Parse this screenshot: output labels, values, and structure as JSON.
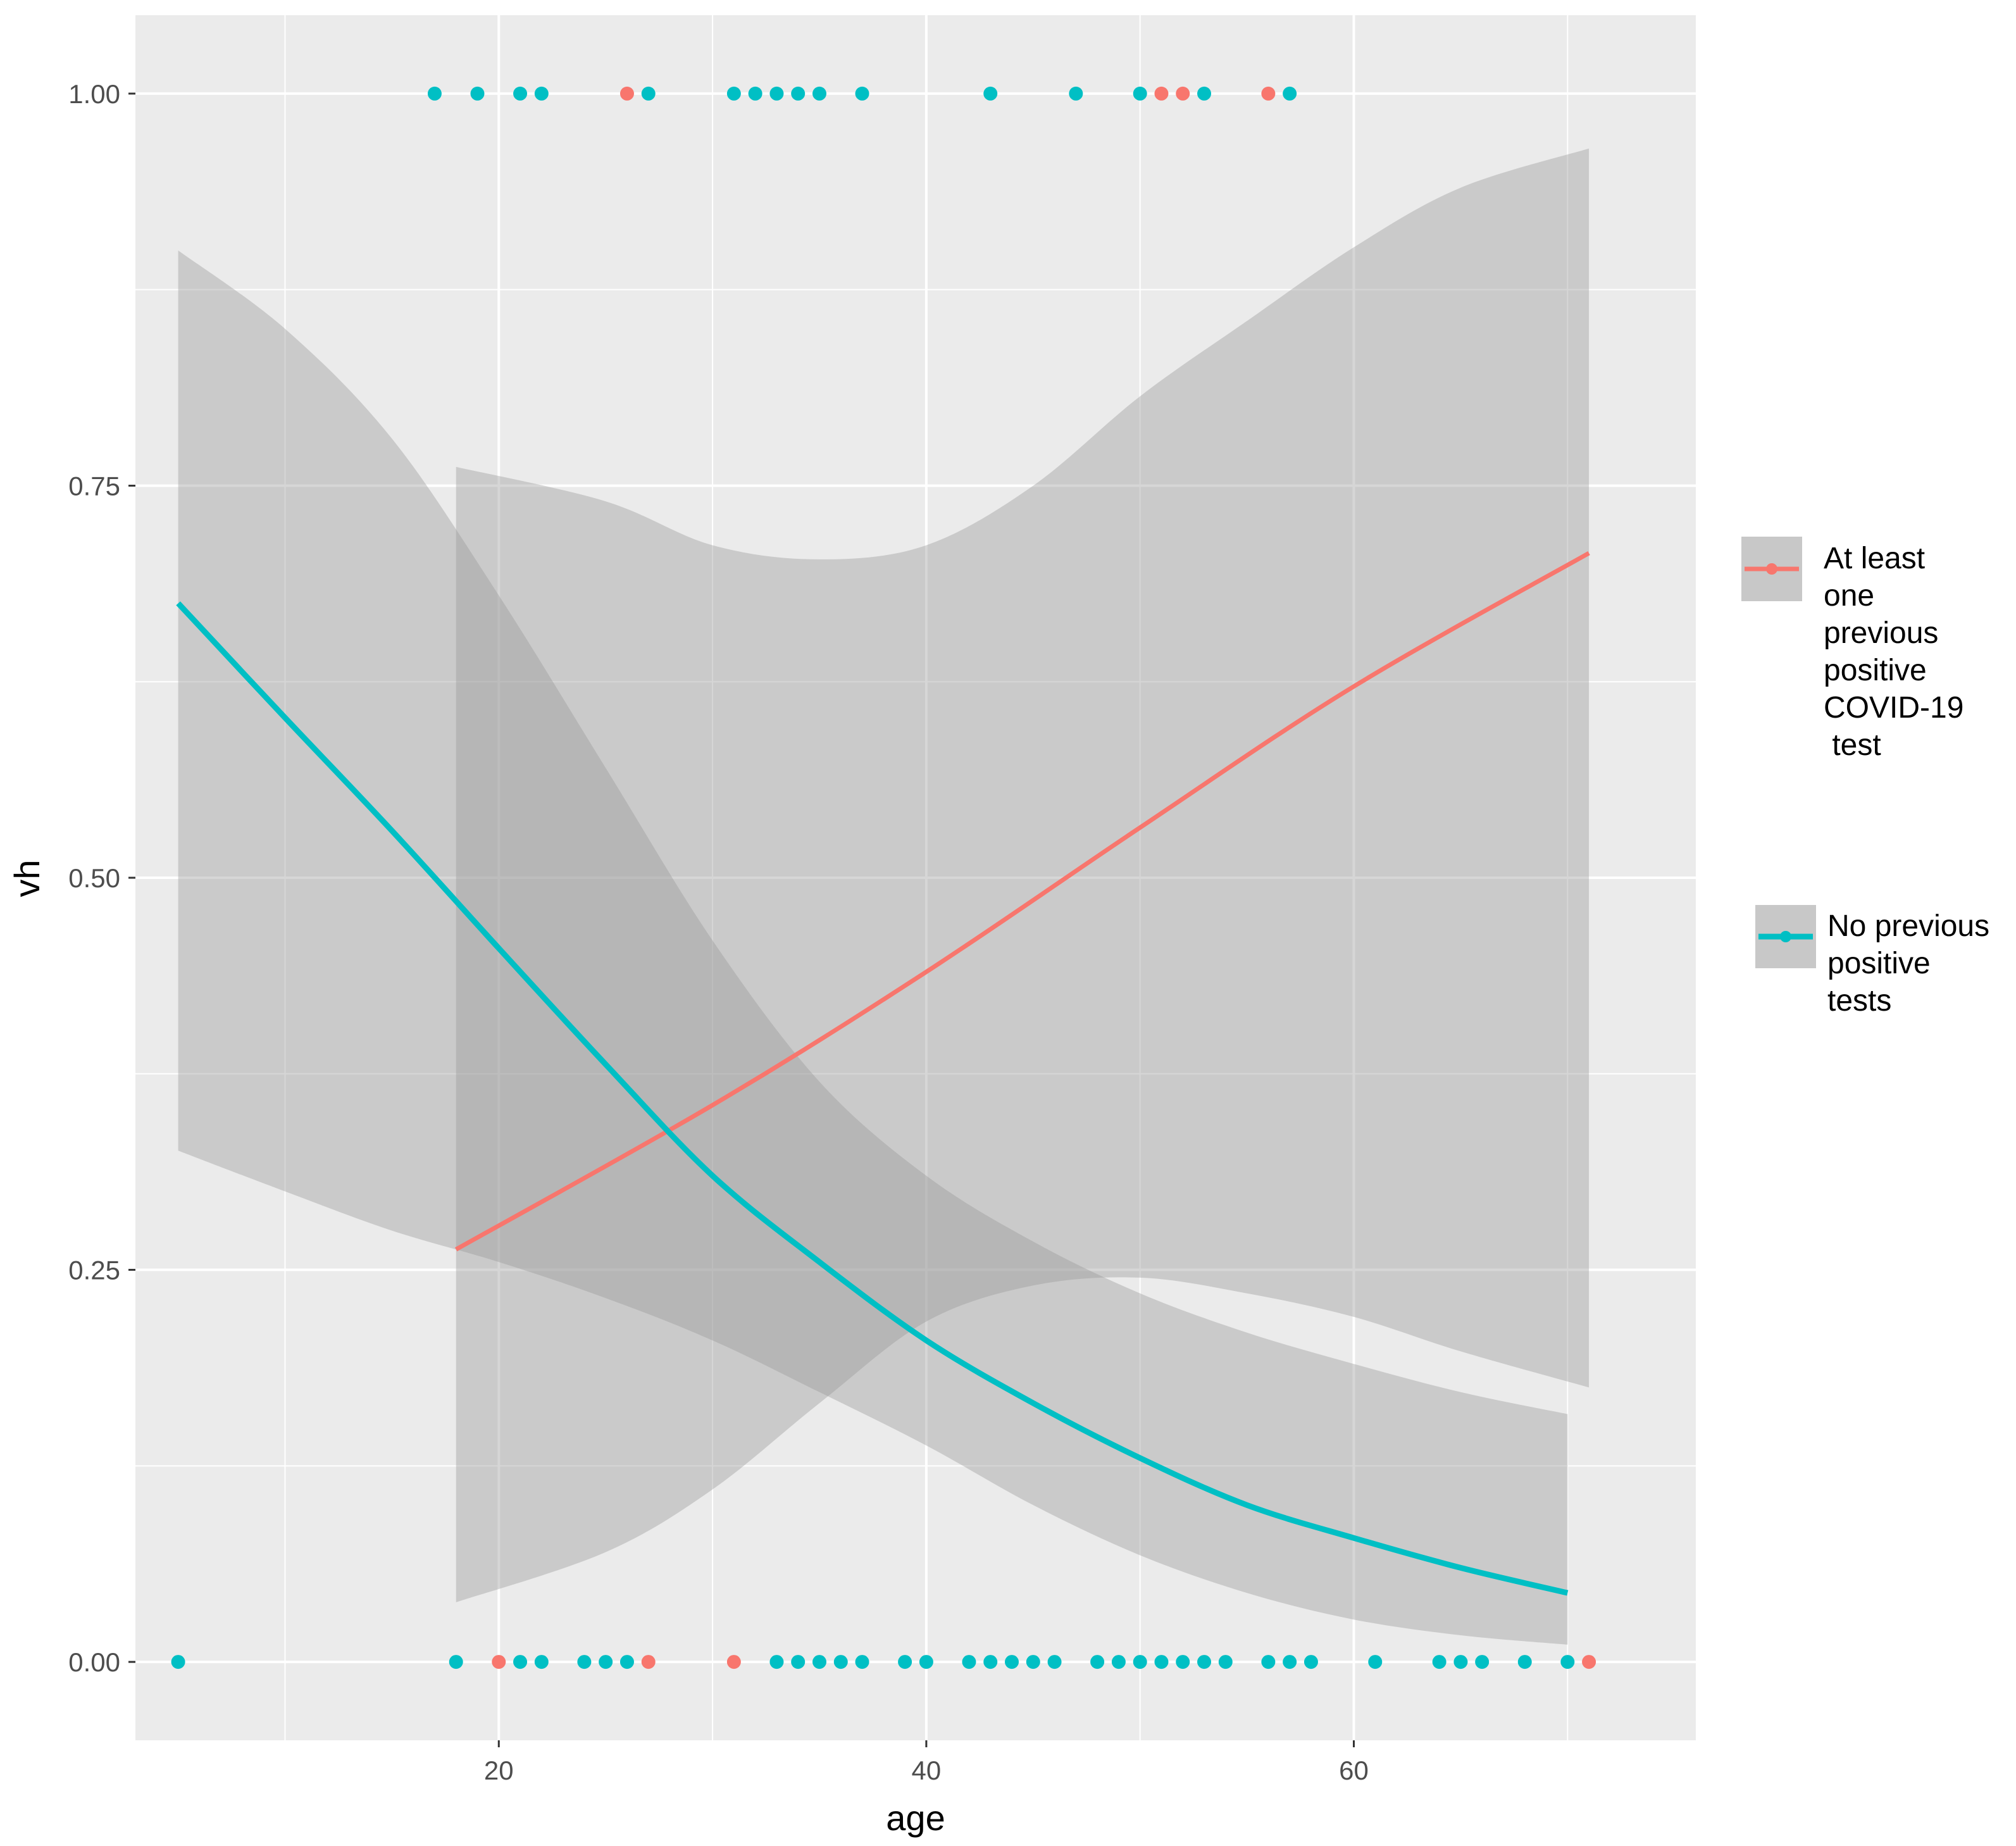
{
  "chart_data": {
    "type": "scatter",
    "xlabel": "age",
    "ylabel": "vh",
    "xlim": [
      3,
      76
    ],
    "ylim": [
      -0.05,
      1.05
    ],
    "x_ticks": [
      20,
      40,
      60
    ],
    "y_ticks": [
      0.0,
      0.25,
      0.5,
      0.75,
      1.0
    ],
    "y_tick_labels": [
      "0.00",
      "0.25",
      "0.50",
      "0.75",
      "1.00"
    ],
    "grid": true,
    "legend_position": "right",
    "colors": {
      "panel": "#EBEBEB",
      "grid": "#FFFFFF",
      "ribbon": "#999999",
      "positive": "#F8766D",
      "none": "#00BFC4"
    },
    "series": [
      {
        "name": "At least one previous positive COVID-19 test",
        "legend_lines": [
          "At least",
          "one",
          "previous",
          "positive",
          "COVID-19",
          " test"
        ],
        "color": "#F8766D",
        "points": [
          [
            26,
            1
          ],
          [
            51,
            1
          ],
          [
            52,
            1
          ],
          [
            56,
            1
          ],
          [
            20,
            0
          ],
          [
            27,
            0
          ],
          [
            31,
            0
          ],
          [
            71,
            0
          ]
        ],
        "fit": [
          [
            18,
            0.263
          ],
          [
            30,
            0.355
          ],
          [
            40,
            0.44
          ],
          [
            50,
            0.532
          ],
          [
            60,
            0.622
          ],
          [
            71,
            0.707
          ]
        ],
        "ci_upper": [
          [
            18,
            0.762
          ],
          [
            25,
            0.74
          ],
          [
            30,
            0.712
          ],
          [
            35,
            0.703
          ],
          [
            40,
            0.712
          ],
          [
            45,
            0.75
          ],
          [
            50,
            0.807
          ],
          [
            55,
            0.855
          ],
          [
            60,
            0.902
          ],
          [
            65,
            0.94
          ],
          [
            71,
            0.965
          ]
        ],
        "ci_lower": [
          [
            18,
            0.038
          ],
          [
            25,
            0.07
          ],
          [
            30,
            0.11
          ],
          [
            35,
            0.165
          ],
          [
            40,
            0.217
          ],
          [
            45,
            0.24
          ],
          [
            50,
            0.245
          ],
          [
            55,
            0.235
          ],
          [
            60,
            0.22
          ],
          [
            65,
            0.198
          ],
          [
            71,
            0.175
          ]
        ]
      },
      {
        "name": "No previous positive tests",
        "legend_lines": [
          "No previous",
          "positive",
          "tests"
        ],
        "color": "#00BFC4",
        "points": [
          [
            17,
            1
          ],
          [
            19,
            1
          ],
          [
            21,
            1
          ],
          [
            22,
            1
          ],
          [
            27,
            1
          ],
          [
            31,
            1
          ],
          [
            32,
            1
          ],
          [
            33,
            1
          ],
          [
            34,
            1
          ],
          [
            35,
            1
          ],
          [
            37,
            1
          ],
          [
            43,
            1
          ],
          [
            47,
            1
          ],
          [
            50,
            1
          ],
          [
            53,
            1
          ],
          [
            57,
            1
          ],
          [
            5,
            0
          ],
          [
            18,
            0
          ],
          [
            21,
            0
          ],
          [
            22,
            0
          ],
          [
            24,
            0
          ],
          [
            25,
            0
          ],
          [
            26,
            0
          ],
          [
            33,
            0
          ],
          [
            34,
            0
          ],
          [
            35,
            0
          ],
          [
            36,
            0
          ],
          [
            37,
            0
          ],
          [
            39,
            0
          ],
          [
            40,
            0
          ],
          [
            42,
            0
          ],
          [
            43,
            0
          ],
          [
            44,
            0
          ],
          [
            45,
            0
          ],
          [
            46,
            0
          ],
          [
            48,
            0
          ],
          [
            49,
            0
          ],
          [
            50,
            0
          ],
          [
            51,
            0
          ],
          [
            52,
            0
          ],
          [
            53,
            0
          ],
          [
            54,
            0
          ],
          [
            56,
            0
          ],
          [
            57,
            0
          ],
          [
            58,
            0
          ],
          [
            61,
            0
          ],
          [
            64,
            0
          ],
          [
            65,
            0
          ],
          [
            66,
            0
          ],
          [
            68,
            0
          ],
          [
            70,
            0
          ]
        ],
        "fit": [
          [
            5,
            0.675
          ],
          [
            10,
            0.602
          ],
          [
            15,
            0.53
          ],
          [
            20,
            0.455
          ],
          [
            25,
            0.381
          ],
          [
            30,
            0.31
          ],
          [
            35,
            0.255
          ],
          [
            40,
            0.205
          ],
          [
            45,
            0.165
          ],
          [
            50,
            0.13
          ],
          [
            55,
            0.1
          ],
          [
            60,
            0.079
          ],
          [
            65,
            0.06
          ],
          [
            70,
            0.044
          ]
        ],
        "ci_upper": [
          [
            5,
            0.9
          ],
          [
            10,
            0.85
          ],
          [
            15,
            0.78
          ],
          [
            20,
            0.68
          ],
          [
            25,
            0.57
          ],
          [
            30,
            0.46
          ],
          [
            35,
            0.37
          ],
          [
            40,
            0.31
          ],
          [
            45,
            0.268
          ],
          [
            50,
            0.235
          ],
          [
            55,
            0.21
          ],
          [
            60,
            0.19
          ],
          [
            65,
            0.172
          ],
          [
            70,
            0.158
          ]
        ],
        "ci_lower": [
          [
            5,
            0.326
          ],
          [
            10,
            0.3
          ],
          [
            15,
            0.275
          ],
          [
            20,
            0.255
          ],
          [
            25,
            0.232
          ],
          [
            30,
            0.205
          ],
          [
            35,
            0.172
          ],
          [
            40,
            0.138
          ],
          [
            45,
            0.1
          ],
          [
            50,
            0.068
          ],
          [
            55,
            0.044
          ],
          [
            60,
            0.027
          ],
          [
            65,
            0.017
          ],
          [
            70,
            0.011
          ]
        ]
      }
    ]
  }
}
